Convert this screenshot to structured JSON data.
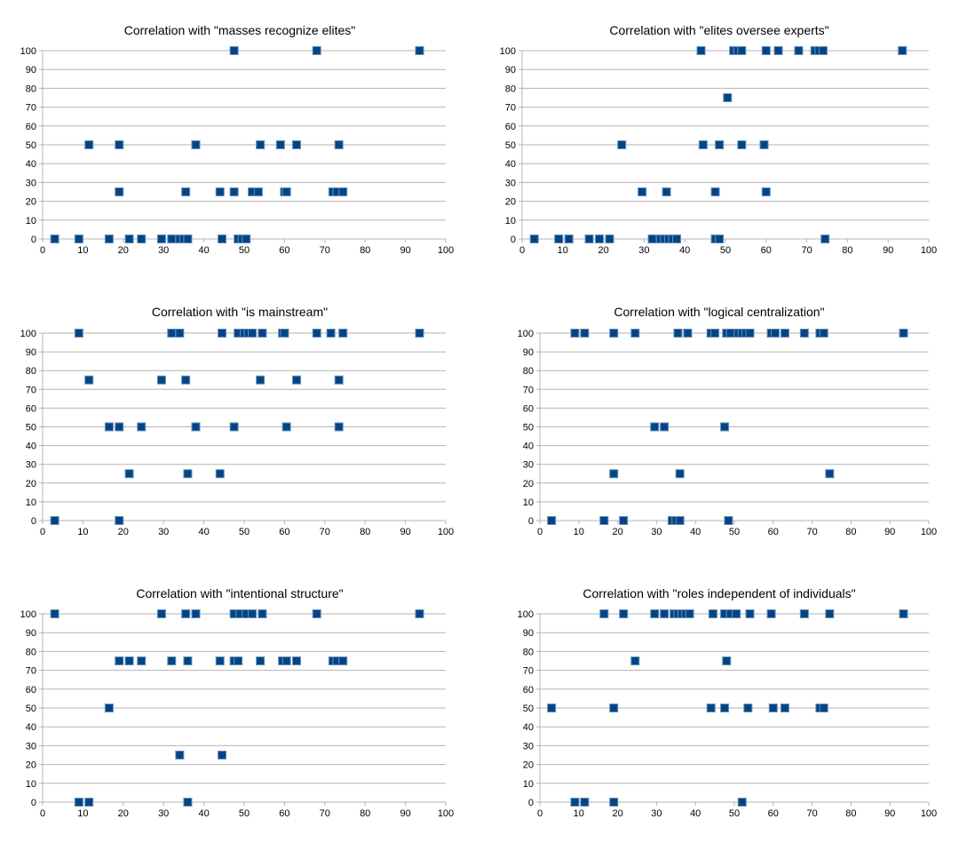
{
  "colors": {
    "marker": "#004586",
    "marker_edge": "#6c8fb8",
    "grid": "#b3b3b3",
    "axis": "#b3b3b3"
  },
  "chart_data": [
    {
      "type": "scatter",
      "title": "Correlation with \"masses recognize elites\"",
      "xlabel": "",
      "ylabel": "",
      "xlim": [
        0,
        100
      ],
      "ylim": [
        0,
        100
      ],
      "xticks": [
        0,
        10,
        20,
        30,
        40,
        50,
        60,
        70,
        80,
        90,
        100
      ],
      "yticks": [
        0,
        10,
        20,
        30,
        40,
        50,
        60,
        70,
        80,
        90,
        100
      ],
      "series": [
        {
          "name": "",
          "points": [
            [
              3,
              0
            ],
            [
              9,
              0
            ],
            [
              16.5,
              0
            ],
            [
              21.5,
              0
            ],
            [
              24.5,
              0
            ],
            [
              29.5,
              0
            ],
            [
              32,
              0
            ],
            [
              34,
              0
            ],
            [
              35,
              0
            ],
            [
              36,
              0
            ],
            [
              44.5,
              0
            ],
            [
              48.5,
              0
            ],
            [
              49.5,
              0
            ],
            [
              50.5,
              0
            ],
            [
              19,
              25
            ],
            [
              35.5,
              25
            ],
            [
              44,
              25
            ],
            [
              47.5,
              25
            ],
            [
              52,
              25
            ],
            [
              53.5,
              25
            ],
            [
              60,
              25
            ],
            [
              60.5,
              25
            ],
            [
              72,
              25
            ],
            [
              73,
              25
            ],
            [
              74.5,
              25
            ],
            [
              11.5,
              50
            ],
            [
              19,
              50
            ],
            [
              38,
              50
            ],
            [
              54,
              50
            ],
            [
              59,
              50
            ],
            [
              63,
              50
            ],
            [
              73.5,
              50
            ],
            [
              47.5,
              100
            ],
            [
              68,
              100
            ],
            [
              93.5,
              100
            ]
          ]
        }
      ]
    },
    {
      "type": "scatter",
      "title": "Correlation with \"elites oversee experts\"",
      "xlabel": "",
      "ylabel": "",
      "xlim": [
        0,
        100
      ],
      "ylim": [
        0,
        100
      ],
      "xticks": [
        0,
        10,
        20,
        30,
        40,
        50,
        60,
        70,
        80,
        90,
        100
      ],
      "yticks": [
        0,
        10,
        20,
        30,
        40,
        50,
        60,
        70,
        80,
        90,
        100
      ],
      "series": [
        {
          "name": "",
          "points": [
            [
              3,
              0
            ],
            [
              9,
              0
            ],
            [
              11.5,
              0
            ],
            [
              16.5,
              0
            ],
            [
              19,
              0
            ],
            [
              21.5,
              0
            ],
            [
              32,
              0
            ],
            [
              34,
              0
            ],
            [
              35,
              0
            ],
            [
              36,
              0
            ],
            [
              37,
              0
            ],
            [
              38,
              0
            ],
            [
              47.5,
              0
            ],
            [
              48.5,
              0
            ],
            [
              74.5,
              0
            ],
            [
              29.5,
              25
            ],
            [
              35.5,
              25
            ],
            [
              47.5,
              25
            ],
            [
              60,
              25
            ],
            [
              24.5,
              50
            ],
            [
              44.5,
              50
            ],
            [
              48.5,
              50
            ],
            [
              54,
              50
            ],
            [
              59.5,
              50
            ],
            [
              50.5,
              75
            ],
            [
              44,
              100
            ],
            [
              52,
              100
            ],
            [
              53,
              100
            ],
            [
              54,
              100
            ],
            [
              60,
              100
            ],
            [
              63,
              100
            ],
            [
              68,
              100
            ],
            [
              72,
              100
            ],
            [
              73,
              100
            ],
            [
              74,
              100
            ],
            [
              93.5,
              100
            ]
          ]
        }
      ]
    },
    {
      "type": "scatter",
      "title": "Correlation with \"is mainstream\"",
      "xlabel": "",
      "ylabel": "",
      "xlim": [
        0,
        100
      ],
      "ylim": [
        0,
        100
      ],
      "xticks": [
        0,
        10,
        20,
        30,
        40,
        50,
        60,
        70,
        80,
        90,
        100
      ],
      "yticks": [
        0,
        10,
        20,
        30,
        40,
        50,
        60,
        70,
        80,
        90,
        100
      ],
      "series": [
        {
          "name": "",
          "points": [
            [
              3,
              0
            ],
            [
              19,
              0
            ],
            [
              21.5,
              25
            ],
            [
              36,
              25
            ],
            [
              44,
              25
            ],
            [
              16.5,
              50
            ],
            [
              19,
              50
            ],
            [
              24.5,
              50
            ],
            [
              38,
              50
            ],
            [
              47.5,
              50
            ],
            [
              60.5,
              50
            ],
            [
              73.5,
              50
            ],
            [
              11.5,
              75
            ],
            [
              29.5,
              75
            ],
            [
              35.5,
              75
            ],
            [
              54,
              75
            ],
            [
              63,
              75
            ],
            [
              73.5,
              75
            ],
            [
              9,
              100
            ],
            [
              32,
              100
            ],
            [
              34,
              100
            ],
            [
              44.5,
              100
            ],
            [
              48.5,
              100
            ],
            [
              50,
              100
            ],
            [
              51,
              100
            ],
            [
              52,
              100
            ],
            [
              54.5,
              100
            ],
            [
              59.5,
              100
            ],
            [
              60,
              100
            ],
            [
              68,
              100
            ],
            [
              71.5,
              100
            ],
            [
              74.5,
              100
            ],
            [
              93.5,
              100
            ]
          ]
        }
      ]
    },
    {
      "type": "scatter",
      "title": "Correlation with \"logical centralization\"",
      "xlabel": "",
      "ylabel": "",
      "xlim": [
        0,
        100
      ],
      "ylim": [
        0,
        100
      ],
      "xticks": [
        0,
        10,
        20,
        30,
        40,
        50,
        60,
        70,
        80,
        90,
        100
      ],
      "yticks": [
        0,
        10,
        20,
        30,
        40,
        50,
        60,
        70,
        80,
        90,
        100
      ],
      "series": [
        {
          "name": "",
          "points": [
            [
              3,
              0
            ],
            [
              16.5,
              0
            ],
            [
              21.5,
              0
            ],
            [
              34,
              0
            ],
            [
              35,
              0
            ],
            [
              36,
              0
            ],
            [
              48.5,
              0
            ],
            [
              19,
              25
            ],
            [
              36,
              25
            ],
            [
              74.5,
              25
            ],
            [
              29.5,
              50
            ],
            [
              32,
              50
            ],
            [
              47.5,
              50
            ],
            [
              9,
              100
            ],
            [
              11.5,
              100
            ],
            [
              19,
              100
            ],
            [
              24.5,
              100
            ],
            [
              35.5,
              100
            ],
            [
              38,
              100
            ],
            [
              44,
              100
            ],
            [
              45,
              100
            ],
            [
              48,
              100
            ],
            [
              49,
              100
            ],
            [
              51,
              100
            ],
            [
              52,
              100
            ],
            [
              53,
              100
            ],
            [
              54,
              100
            ],
            [
              59.5,
              100
            ],
            [
              60.5,
              100
            ],
            [
              63,
              100
            ],
            [
              68,
              100
            ],
            [
              72,
              100
            ],
            [
              73,
              100
            ],
            [
              93.5,
              100
            ]
          ]
        }
      ]
    },
    {
      "type": "scatter",
      "title": "Correlation with \"intentional structure\"",
      "xlabel": "",
      "ylabel": "",
      "xlim": [
        0,
        100
      ],
      "ylim": [
        0,
        100
      ],
      "xticks": [
        0,
        10,
        20,
        30,
        40,
        50,
        60,
        70,
        80,
        90,
        100
      ],
      "yticks": [
        0,
        10,
        20,
        30,
        40,
        50,
        60,
        70,
        80,
        90,
        100
      ],
      "series": [
        {
          "name": "",
          "points": [
            [
              9,
              0
            ],
            [
              11.5,
              0
            ],
            [
              36,
              0
            ],
            [
              34,
              25
            ],
            [
              44.5,
              25
            ],
            [
              16.5,
              50
            ],
            [
              19,
              75
            ],
            [
              21.5,
              75
            ],
            [
              24.5,
              75
            ],
            [
              32,
              75
            ],
            [
              36,
              75
            ],
            [
              44,
              75
            ],
            [
              47.5,
              75
            ],
            [
              48.5,
              75
            ],
            [
              54,
              75
            ],
            [
              59.5,
              75
            ],
            [
              60.5,
              75
            ],
            [
              63,
              75
            ],
            [
              72,
              75
            ],
            [
              73,
              75
            ],
            [
              74.5,
              75
            ],
            [
              3,
              100
            ],
            [
              29.5,
              100
            ],
            [
              35.5,
              100
            ],
            [
              38,
              100
            ],
            [
              47.5,
              100
            ],
            [
              49,
              100
            ],
            [
              50.5,
              100
            ],
            [
              52,
              100
            ],
            [
              54.5,
              100
            ],
            [
              68,
              100
            ],
            [
              93.5,
              100
            ]
          ]
        }
      ]
    },
    {
      "type": "scatter",
      "title": "Correlation with \"roles independent of individuals\"",
      "xlabel": "",
      "ylabel": "",
      "xlim": [
        0,
        100
      ],
      "ylim": [
        0,
        100
      ],
      "xticks": [
        0,
        10,
        20,
        30,
        40,
        50,
        60,
        70,
        80,
        90,
        100
      ],
      "yticks": [
        0,
        10,
        20,
        30,
        40,
        50,
        60,
        70,
        80,
        90,
        100
      ],
      "series": [
        {
          "name": "",
          "points": [
            [
              9,
              0
            ],
            [
              11.5,
              0
            ],
            [
              19,
              0
            ],
            [
              52,
              0
            ],
            [
              3,
              50
            ],
            [
              19,
              50
            ],
            [
              44,
              50
            ],
            [
              47.5,
              50
            ],
            [
              53.5,
              50
            ],
            [
              60,
              50
            ],
            [
              63,
              50
            ],
            [
              72,
              50
            ],
            [
              73,
              50
            ],
            [
              24.5,
              75
            ],
            [
              48,
              75
            ],
            [
              16.5,
              100
            ],
            [
              21.5,
              100
            ],
            [
              29.5,
              100
            ],
            [
              32,
              100
            ],
            [
              34.5,
              100
            ],
            [
              35.5,
              100
            ],
            [
              36.5,
              100
            ],
            [
              37.5,
              100
            ],
            [
              38.5,
              100
            ],
            [
              44.5,
              100
            ],
            [
              47.5,
              100
            ],
            [
              49,
              100
            ],
            [
              50.5,
              100
            ],
            [
              54,
              100
            ],
            [
              59.5,
              100
            ],
            [
              68,
              100
            ],
            [
              74.5,
              100
            ],
            [
              93.5,
              100
            ]
          ]
        }
      ]
    }
  ]
}
